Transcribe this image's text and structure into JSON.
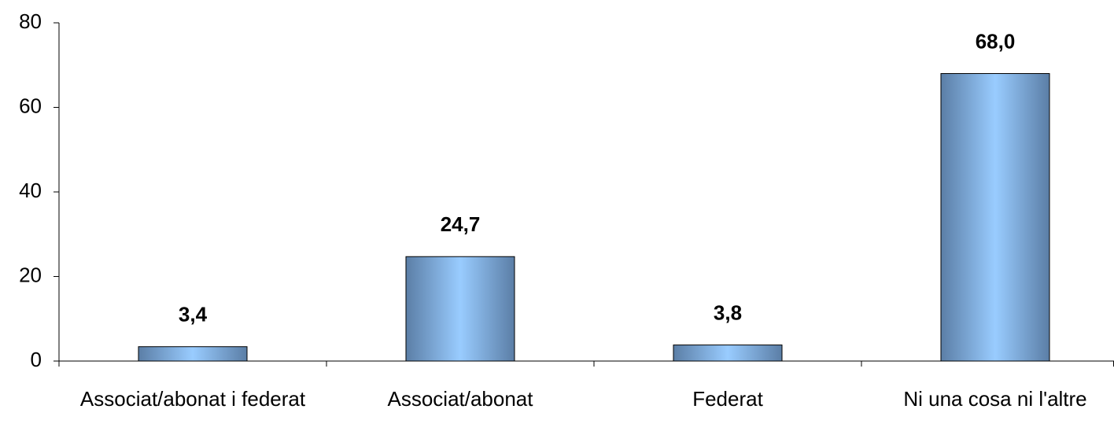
{
  "chart_data": {
    "type": "bar",
    "categories": [
      "Associat/abonat i federat",
      "Associat/abonat",
      "Federat",
      "Ni una cosa ni l'altre"
    ],
    "values": [
      3.4,
      24.7,
      3.8,
      68.0
    ],
    "value_labels": [
      "3,4",
      "24,7",
      "3,8",
      "68,0"
    ],
    "color": "#99ccff",
    "ylim": [
      0,
      80
    ],
    "yticks": [
      0,
      20,
      40,
      60,
      80
    ],
    "grid": false
  }
}
